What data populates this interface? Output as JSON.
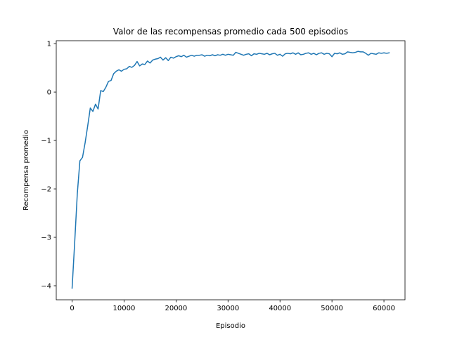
{
  "chart_data": {
    "type": "line",
    "title": "Valor de las recompensas promedio cada 500 episodios",
    "xlabel": "Episodio",
    "ylabel": "Recompensa promedio",
    "xlim": [
      -3050,
      64050
    ],
    "ylim": [
      -4.29,
      1.06
    ],
    "x_ticks": [
      0,
      10000,
      20000,
      30000,
      40000,
      50000,
      60000
    ],
    "x_tick_labels": [
      "0",
      "10000",
      "20000",
      "30000",
      "40000",
      "50000",
      "60000"
    ],
    "y_ticks": [
      -4,
      -3,
      -2,
      -1,
      0,
      1
    ],
    "y_tick_labels": [
      "−4",
      "−3",
      "−2",
      "−1",
      "0",
      "1"
    ],
    "grid": false,
    "legend": "none",
    "series": [
      {
        "color": "#1f77b4",
        "x": [
          0,
          500,
          1000,
          1500,
          2000,
          2500,
          3000,
          3500,
          4000,
          4500,
          5000,
          5500,
          6000,
          6500,
          7000,
          7500,
          8000,
          8500,
          9000,
          9500,
          10000,
          10500,
          11000,
          11500,
          12000,
          12500,
          13000,
          13500,
          14000,
          14500,
          15000,
          15500,
          16000,
          16500,
          17000,
          17500,
          18000,
          18500,
          19000,
          19500,
          20000,
          20500,
          21000,
          21500,
          22000,
          22500,
          23000,
          23500,
          24000,
          24500,
          25000,
          25500,
          26000,
          26500,
          27000,
          27500,
          28000,
          28500,
          29000,
          29500,
          30000,
          30500,
          31000,
          31500,
          32000,
          32500,
          33000,
          33500,
          34000,
          34500,
          35000,
          35500,
          36000,
          36500,
          37000,
          37500,
          38000,
          38500,
          39000,
          39500,
          40000,
          40500,
          41000,
          41500,
          42000,
          42500,
          43000,
          43500,
          44000,
          44500,
          45000,
          45500,
          46000,
          46500,
          47000,
          47500,
          48000,
          48500,
          49000,
          49500,
          50000,
          50500,
          51000,
          51500,
          52000,
          52500,
          53000,
          53500,
          54000,
          54500,
          55000,
          55500,
          56000,
          56500,
          57000,
          57500,
          58000,
          58500,
          59000,
          59500,
          60000,
          60500,
          61000
        ],
        "y": [
          -4.05,
          -3.1,
          -2.1,
          -1.42,
          -1.35,
          -1.05,
          -0.7,
          -0.33,
          -0.4,
          -0.25,
          -0.35,
          0.03,
          0.01,
          0.1,
          0.22,
          0.24,
          0.38,
          0.43,
          0.46,
          0.43,
          0.47,
          0.48,
          0.53,
          0.51,
          0.55,
          0.63,
          0.54,
          0.58,
          0.57,
          0.64,
          0.6,
          0.66,
          0.68,
          0.69,
          0.72,
          0.66,
          0.71,
          0.65,
          0.72,
          0.7,
          0.73,
          0.75,
          0.73,
          0.76,
          0.72,
          0.74,
          0.76,
          0.74,
          0.76,
          0.76,
          0.77,
          0.74,
          0.76,
          0.75,
          0.77,
          0.75,
          0.77,
          0.76,
          0.78,
          0.76,
          0.78,
          0.77,
          0.76,
          0.82,
          0.8,
          0.78,
          0.76,
          0.78,
          0.79,
          0.75,
          0.79,
          0.78,
          0.8,
          0.79,
          0.78,
          0.8,
          0.77,
          0.79,
          0.8,
          0.76,
          0.78,
          0.74,
          0.79,
          0.8,
          0.79,
          0.81,
          0.78,
          0.81,
          0.77,
          0.78,
          0.8,
          0.81,
          0.78,
          0.8,
          0.77,
          0.8,
          0.81,
          0.78,
          0.8,
          0.79,
          0.73,
          0.8,
          0.79,
          0.81,
          0.78,
          0.79,
          0.83,
          0.82,
          0.81,
          0.82,
          0.84,
          0.83,
          0.83,
          0.8,
          0.76,
          0.8,
          0.79,
          0.78,
          0.81,
          0.8,
          0.81,
          0.8,
          0.81
        ]
      }
    ]
  }
}
